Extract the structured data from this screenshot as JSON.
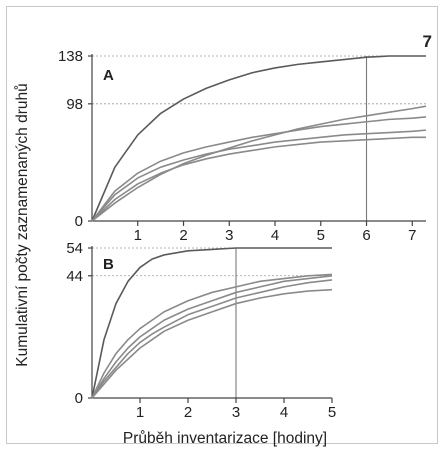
{
  "figure_number": "7",
  "ylabel": "Kumulativní počty zaznamenaných druhů",
  "xlabel": "Průběh inventarizace [hodiny]",
  "chart_data": [
    {
      "type": "line",
      "panel": "A",
      "x_ticks": [
        "1",
        "2",
        "3",
        "4",
        "5",
        "6",
        "7"
      ],
      "y_ticks": [
        "0",
        "98",
        "138"
      ],
      "xlim": [
        0,
        7.3
      ],
      "ylim": [
        0,
        138
      ],
      "reference_lines": {
        "x": [
          6
        ],
        "y": [
          98,
          138
        ]
      },
      "series": [
        {
          "x": [
            0,
            0.5,
            1,
            1.5,
            2,
            2.5,
            3,
            3.5,
            4,
            4.5,
            5,
            5.5,
            6,
            6.5,
            7,
            7.3
          ],
          "y": [
            0,
            45,
            72,
            90,
            102,
            111,
            118,
            124,
            128,
            131,
            133,
            135,
            137,
            138,
            138,
            138
          ]
        },
        {
          "x": [
            0,
            0.5,
            1,
            1.5,
            2,
            2.5,
            3,
            3.5,
            4,
            4.5,
            5,
            5.5,
            6,
            6.5,
            7,
            7.3
          ],
          "y": [
            0,
            15,
            28,
            39,
            48,
            55,
            61,
            67,
            72,
            77,
            81,
            85,
            88,
            91,
            94,
            96
          ]
        },
        {
          "x": [
            0,
            0.5,
            1,
            1.5,
            2,
            2.5,
            3,
            3.5,
            4,
            4.5,
            5,
            5.5,
            6,
            6.5,
            7,
            7.3
          ],
          "y": [
            0,
            25,
            40,
            50,
            57,
            62,
            66,
            70,
            73,
            76,
            79,
            81,
            83,
            85,
            86,
            87
          ]
        },
        {
          "x": [
            0,
            0.5,
            1,
            1.5,
            2,
            2.5,
            3,
            3.5,
            4,
            4.5,
            5,
            5.5,
            6,
            6.5,
            7,
            7.3
          ],
          "y": [
            0,
            22,
            36,
            45,
            51,
            56,
            60,
            63,
            66,
            68,
            70,
            72,
            73,
            74,
            75,
            76
          ]
        },
        {
          "x": [
            0,
            0.5,
            1,
            1.5,
            2,
            2.5,
            3,
            3.5,
            4,
            4.5,
            5,
            5.5,
            6,
            6.5,
            7,
            7.3
          ],
          "y": [
            0,
            18,
            31,
            40,
            47,
            52,
            56,
            59,
            62,
            64,
            66,
            67,
            68,
            69,
            70,
            70
          ]
        }
      ]
    },
    {
      "type": "line",
      "panel": "B",
      "x_ticks": [
        "1",
        "2",
        "3",
        "4",
        "5"
      ],
      "y_ticks": [
        "0",
        "44",
        "54"
      ],
      "xlim": [
        0,
        5
      ],
      "ylim": [
        0,
        54
      ],
      "reference_lines": {
        "x": [
          3
        ],
        "y": [
          44,
          54
        ]
      },
      "series": [
        {
          "x": [
            0,
            0.25,
            0.5,
            0.75,
            1,
            1.25,
            1.5,
            2,
            2.5,
            3,
            3.5,
            4,
            4.5,
            5
          ],
          "y": [
            0,
            21,
            34,
            42,
            47,
            50,
            51.5,
            53,
            53.5,
            54,
            54,
            54,
            54,
            54
          ]
        },
        {
          "x": [
            0,
            0.25,
            0.5,
            0.75,
            1,
            1.25,
            1.5,
            2,
            2.5,
            3,
            3.5,
            4,
            4.5,
            5
          ],
          "y": [
            0,
            9,
            16,
            21,
            25,
            28,
            31,
            35,
            38,
            40,
            42,
            43,
            44,
            44.5
          ]
        },
        {
          "x": [
            0,
            0.25,
            0.5,
            0.75,
            1,
            1.25,
            1.5,
            2,
            2.5,
            3,
            3.5,
            4,
            4.5,
            5
          ],
          "y": [
            0,
            7,
            13,
            18,
            22,
            25,
            28,
            32,
            35,
            38,
            40,
            42,
            43,
            44
          ]
        },
        {
          "x": [
            0,
            0.25,
            0.5,
            0.75,
            1,
            1.25,
            1.5,
            2,
            2.5,
            3,
            3.5,
            4,
            4.5,
            5
          ],
          "y": [
            0,
            6,
            11,
            16,
            20,
            23,
            25.5,
            30,
            33,
            36,
            38,
            40,
            41.5,
            42.5
          ]
        },
        {
          "x": [
            0,
            0.25,
            0.5,
            0.75,
            1,
            1.25,
            1.5,
            2,
            2.5,
            3,
            3.5,
            4,
            4.5,
            5
          ],
          "y": [
            0,
            5,
            10,
            14,
            18,
            21,
            24,
            28,
            31,
            34,
            36,
            37.5,
            38.5,
            39
          ]
        }
      ]
    }
  ]
}
